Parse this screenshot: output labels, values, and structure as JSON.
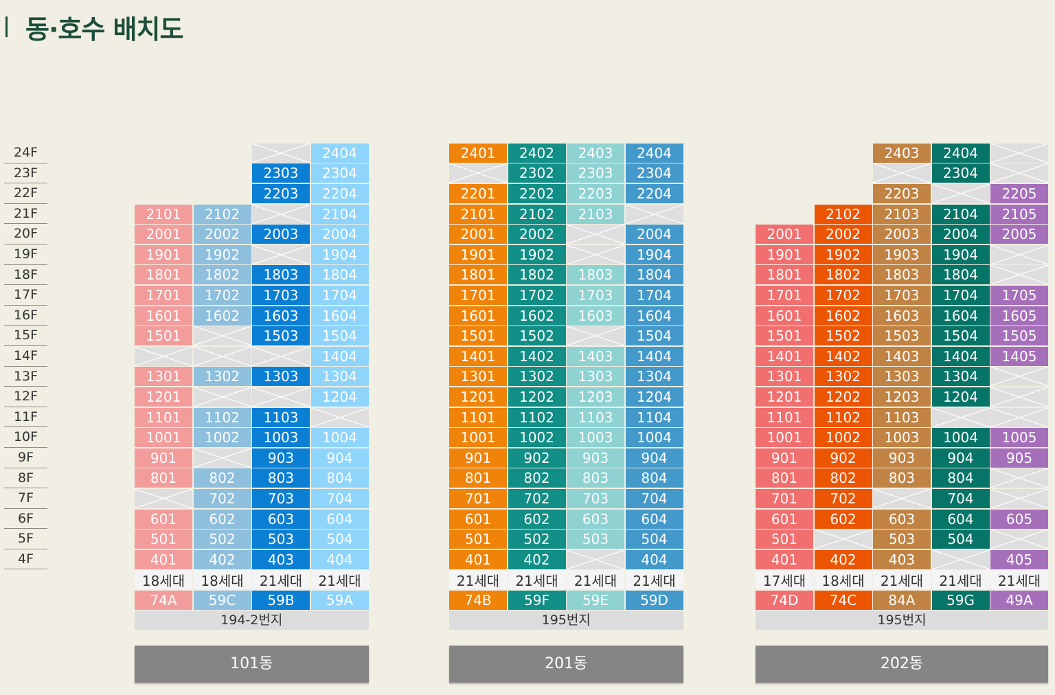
{
  "title": "동·호수 배치도",
  "floors": [
    "24F",
    "23F",
    "22F",
    "21F",
    "20F",
    "19F",
    "18F",
    "17F",
    "16F",
    "15F",
    "14F",
    "13F",
    "12F",
    "11F",
    "10F",
    "9F",
    "8F",
    "7F",
    "6F",
    "5F",
    "4F"
  ],
  "colors": {
    "74A": "#f29c9c",
    "59C": "#8ebfdd",
    "59B": "#0a7fd4",
    "59A": "#8ed4fb",
    "74B": "#f08309",
    "59F": "#118e85",
    "59E": "#8ed2d2",
    "59D": "#4399ca",
    "74D": "#f16f6f",
    "74C": "#ec5504",
    "84A": "#c08343",
    "59G": "#067467",
    "49A": "#a66fba",
    "empty": "#dedede"
  },
  "buildings": [
    {
      "name": "101동",
      "address": "194-2번지",
      "lines": [
        {
          "type": "74A",
          "units": "18세대",
          "rooms": [
            "",
            "",
            "",
            "2101",
            "2001",
            "1901",
            "1801",
            "1701",
            "1601",
            "1501",
            "x",
            "1301",
            "1201",
            "1101",
            "1001",
            "901",
            "801",
            "x",
            "601",
            "501",
            "401"
          ]
        },
        {
          "type": "59C",
          "units": "18세대",
          "rooms": [
            "",
            "",
            "",
            "2102",
            "2002",
            "1902",
            "1802",
            "1702",
            "1602",
            "x",
            "x",
            "1302",
            "x",
            "1102",
            "1002",
            "x",
            "802",
            "702",
            "602",
            "502",
            "402"
          ]
        },
        {
          "type": "59B",
          "units": "21세대",
          "rooms": [
            "x",
            "2303",
            "2203",
            "x",
            "2003",
            "x",
            "1803",
            "1703",
            "1603",
            "1503",
            "x",
            "1303",
            "x",
            "1103",
            "1003",
            "903",
            "803",
            "703",
            "603",
            "503",
            "403"
          ]
        },
        {
          "type": "59A",
          "units": "21세대",
          "rooms": [
            "2404",
            "2304",
            "2204",
            "2104",
            "2004",
            "1904",
            "1804",
            "1704",
            "1604",
            "1504",
            "1404",
            "1304",
            "1204",
            "x",
            "1004",
            "904",
            "804",
            "704",
            "604",
            "504",
            "404"
          ]
        }
      ]
    },
    {
      "name": "201동",
      "address": "195번지",
      "lines": [
        {
          "type": "74B",
          "units": "21세대",
          "rooms": [
            "2401",
            "x",
            "2201",
            "2101",
            "2001",
            "1901",
            "1801",
            "1701",
            "1601",
            "1501",
            "1401",
            "1301",
            "1201",
            "1101",
            "1001",
            "901",
            "801",
            "701",
            "601",
            "501",
            "401"
          ]
        },
        {
          "type": "59F",
          "units": "21세대",
          "rooms": [
            "2402",
            "2302",
            "2202",
            "2102",
            "2002",
            "1902",
            "1802",
            "1702",
            "1602",
            "1502",
            "1402",
            "1302",
            "1202",
            "1102",
            "1002",
            "902",
            "802",
            "702",
            "602",
            "502",
            "402"
          ]
        },
        {
          "type": "59E",
          "units": "21세대",
          "rooms": [
            "2403",
            "2303",
            "2203",
            "2103",
            "x",
            "x",
            "1803",
            "1703",
            "1603",
            "x",
            "1403",
            "1303",
            "1203",
            "1103",
            "1003",
            "903",
            "803",
            "703",
            "603",
            "503",
            "x"
          ]
        },
        {
          "type": "59D",
          "units": "21세대",
          "rooms": [
            "2404",
            "2304",
            "2204",
            "x",
            "2004",
            "1904",
            "1804",
            "1704",
            "1604",
            "1504",
            "1404",
            "1304",
            "1204",
            "1104",
            "1004",
            "904",
            "804",
            "704",
            "604",
            "504",
            "404"
          ]
        }
      ]
    },
    {
      "name": "202동",
      "address": "195번지",
      "lines": [
        {
          "type": "74D",
          "units": "17세대",
          "rooms": [
            "",
            "",
            "",
            "",
            "2001",
            "1901",
            "1801",
            "1701",
            "1601",
            "1501",
            "1401",
            "1301",
            "1201",
            "1101",
            "1001",
            "901",
            "801",
            "701",
            "601",
            "501",
            "401"
          ]
        },
        {
          "type": "74C",
          "units": "18세대",
          "rooms": [
            "",
            "",
            "",
            "2102",
            "2002",
            "1902",
            "1802",
            "1702",
            "1602",
            "1502",
            "1402",
            "1302",
            "1202",
            "1102",
            "1002",
            "902",
            "802",
            "702",
            "602",
            "x",
            "402"
          ]
        },
        {
          "type": "84A",
          "units": "21세대",
          "rooms": [
            "2403",
            "x",
            "2203",
            "2103",
            "2003",
            "1903",
            "1803",
            "1703",
            "1603",
            "1503",
            "1403",
            "1303",
            "1203",
            "1103",
            "1003",
            "903",
            "803",
            "x",
            "603",
            "503",
            "403"
          ]
        },
        {
          "type": "59G",
          "units": "21세대",
          "rooms": [
            "2404",
            "2304",
            "x",
            "2104",
            "2004",
            "1904",
            "1804",
            "1704",
            "1604",
            "1504",
            "1404",
            "1304",
            "1204",
            "x",
            "1004",
            "904",
            "804",
            "704",
            "604",
            "504",
            "x"
          ]
        },
        {
          "type": "49A",
          "units": "21세대",
          "rooms": [
            "x",
            "x",
            "2205",
            "2105",
            "2005",
            "x",
            "x",
            "1705",
            "1605",
            "1505",
            "1405",
            "x",
            "x",
            "x",
            "1005",
            "905",
            "x",
            "x",
            "605",
            "x",
            "405"
          ]
        }
      ]
    }
  ]
}
